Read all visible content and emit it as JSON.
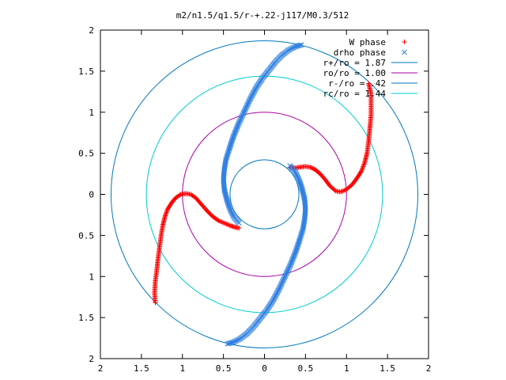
{
  "chart_data": {
    "type": "scatter",
    "title": "m2/n1.5/q1.5/r-+.22-j117/M0.3/512",
    "xlim": [
      -2,
      2
    ],
    "ylim": [
      -2,
      2
    ],
    "x_tick_values": [
      -2,
      -1.5,
      -1,
      -0.5,
      0,
      0.5,
      1,
      1.5,
      2
    ],
    "x_tick_labels": [
      "2",
      "1.5",
      "1",
      "0.5",
      "0",
      "0.5",
      "1",
      "1.5",
      "2"
    ],
    "y_tick_values": [
      2,
      1.5,
      1,
      0.5,
      0,
      -0.5,
      -1,
      -1.5,
      -2
    ],
    "y_tick_labels": [
      "2",
      "1.5",
      "1",
      "0.5",
      "0",
      "0.5",
      "1",
      "1.5",
      "2"
    ],
    "grid": false,
    "legend_position": "top-right",
    "series": [
      {
        "name": "W phase",
        "marker": "plus",
        "color": "#ff0000",
        "arms": [
          [
            [
              1.27,
              1.35
            ],
            [
              1.3,
              1.22
            ],
            [
              1.3,
              1.1
            ],
            [
              1.3,
              0.98
            ],
            [
              1.29,
              0.86
            ],
            [
              1.28,
              0.75
            ],
            [
              1.27,
              0.65
            ],
            [
              1.25,
              0.5
            ],
            [
              1.22,
              0.38
            ],
            [
              1.18,
              0.28
            ],
            [
              1.13,
              0.2
            ],
            [
              1.07,
              0.12
            ],
            [
              1.0,
              0.06
            ],
            [
              0.93,
              0.03
            ],
            [
              0.87,
              0.04
            ],
            [
              0.8,
              0.1
            ],
            [
              0.74,
              0.18
            ],
            [
              0.68,
              0.25
            ],
            [
              0.62,
              0.3
            ],
            [
              0.56,
              0.33
            ],
            [
              0.5,
              0.34
            ],
            [
              0.43,
              0.33
            ],
            [
              0.36,
              0.32
            ],
            [
              0.31,
              0.33
            ]
          ],
          [
            [
              -1.33,
              -1.32
            ],
            [
              -1.34,
              -1.2
            ],
            [
              -1.33,
              -1.05
            ],
            [
              -1.31,
              -0.9
            ],
            [
              -1.3,
              -0.8
            ],
            [
              -1.28,
              -0.65
            ],
            [
              -1.26,
              -0.5
            ],
            [
              -1.24,
              -0.38
            ],
            [
              -1.21,
              -0.26
            ],
            [
              -1.18,
              -0.18
            ],
            [
              -1.13,
              -0.1
            ],
            [
              -1.08,
              -0.04
            ],
            [
              -1.02,
              0.0
            ],
            [
              -0.96,
              0.01
            ],
            [
              -0.9,
              0.0
            ],
            [
              -0.84,
              -0.04
            ],
            [
              -0.77,
              -0.12
            ],
            [
              -0.7,
              -0.2
            ],
            [
              -0.63,
              -0.27
            ],
            [
              -0.56,
              -0.32
            ],
            [
              -0.49,
              -0.35
            ],
            [
              -0.42,
              -0.38
            ],
            [
              -0.36,
              -0.4
            ],
            [
              -0.31,
              -0.41
            ]
          ]
        ]
      },
      {
        "name": "drho phase",
        "marker": "cross",
        "color": "#3080e0",
        "arms": [
          [
            [
              0.45,
              1.82
            ],
            [
              0.38,
              1.8
            ],
            [
              0.3,
              1.76
            ],
            [
              0.22,
              1.7
            ],
            [
              0.14,
              1.62
            ],
            [
              0.06,
              1.52
            ],
            [
              -0.02,
              1.42
            ],
            [
              -0.1,
              1.3
            ],
            [
              -0.18,
              1.15
            ],
            [
              -0.25,
              1.0
            ],
            [
              -0.32,
              0.85
            ],
            [
              -0.38,
              0.7
            ],
            [
              -0.43,
              0.55
            ],
            [
              -0.47,
              0.42
            ],
            [
              -0.49,
              0.3
            ],
            [
              -0.5,
              0.18
            ],
            [
              -0.49,
              0.06
            ],
            [
              -0.46,
              -0.06
            ],
            [
              -0.42,
              -0.18
            ],
            [
              -0.37,
              -0.28
            ],
            [
              -0.31,
              -0.35
            ]
          ],
          [
            [
              -0.45,
              -1.82
            ],
            [
              -0.38,
              -1.8
            ],
            [
              -0.3,
              -1.76
            ],
            [
              -0.22,
              -1.7
            ],
            [
              -0.14,
              -1.62
            ],
            [
              -0.06,
              -1.52
            ],
            [
              0.02,
              -1.42
            ],
            [
              0.1,
              -1.3
            ],
            [
              0.18,
              -1.15
            ],
            [
              0.25,
              -1.0
            ],
            [
              0.32,
              -0.85
            ],
            [
              0.38,
              -0.7
            ],
            [
              0.43,
              -0.55
            ],
            [
              0.47,
              -0.42
            ],
            [
              0.49,
              -0.3
            ],
            [
              0.5,
              -0.18
            ],
            [
              0.49,
              -0.06
            ],
            [
              0.46,
              0.06
            ],
            [
              0.42,
              0.18
            ],
            [
              0.37,
              0.28
            ],
            [
              0.31,
              0.35
            ]
          ]
        ]
      },
      {
        "name": "r+/ro = 1.87",
        "marker": "line",
        "color": "#0077bb",
        "circle_radius": 1.87
      },
      {
        "name": "ro/ro = 1.00",
        "marker": "line",
        "color": "#aa00aa",
        "circle_radius": 1.0
      },
      {
        "name": "r-/ro = .42",
        "marker": "line",
        "color": "#0077bb",
        "circle_radius": 0.42
      },
      {
        "name": "rc/ro = 1.44",
        "marker": "line",
        "color": "#00cccc",
        "circle_radius": 1.44
      }
    ]
  }
}
